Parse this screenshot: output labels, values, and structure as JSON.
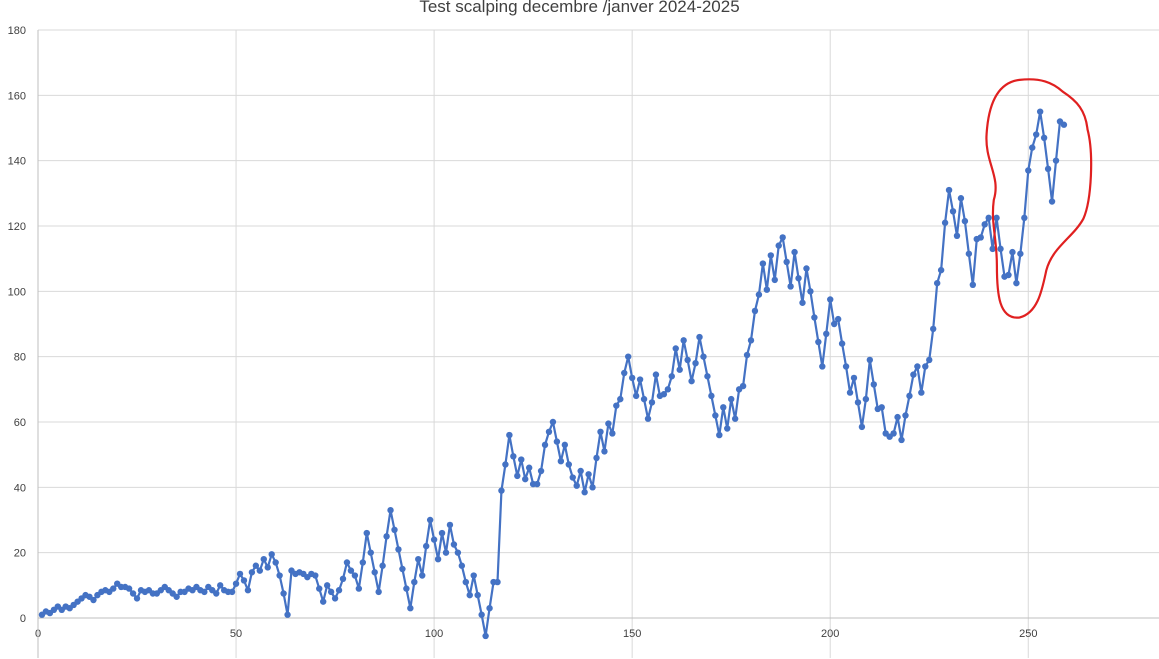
{
  "chart_data": {
    "type": "line",
    "title": "Test scalping decembre /janver 2024-2025",
    "xlabel": "",
    "ylabel": "",
    "xlim": [
      0,
      283
    ],
    "ylim": [
      0,
      180
    ],
    "xticks": [
      0,
      50,
      100,
      150,
      200,
      250
    ],
    "yticks": [
      0,
      20,
      40,
      60,
      80,
      100,
      120,
      140,
      160,
      180
    ],
    "grid": true,
    "legend": "none",
    "colors": {
      "series": "#4472C4",
      "annotation": "#E02020",
      "grid": "#D9D9D9"
    },
    "annotation": {
      "shape": "hand-drawn circle",
      "x_range": [
        240,
        266
      ],
      "y_range": [
        92,
        164
      ]
    },
    "series": [
      {
        "values": [
          1,
          2,
          1.5,
          2.5,
          3.5,
          2.5,
          3.5,
          3,
          4,
          5,
          6,
          7,
          6.5,
          5.5,
          7,
          8,
          8.5,
          8,
          9,
          10.5,
          9.5,
          9.5,
          9,
          7.5,
          6,
          8.5,
          8,
          8.5,
          7.5,
          7.5,
          8.5,
          9.5,
          8.5,
          7.5,
          6.5,
          8,
          8,
          9,
          8.5,
          9.5,
          8.5,
          8,
          9.5,
          8.5,
          7.5,
          10,
          8.5,
          8,
          8,
          10.5,
          13.5,
          11.5,
          8.5,
          14,
          16,
          14.5,
          18,
          15.5,
          19.5,
          17,
          13,
          7.5,
          1,
          14.5,
          13.5,
          14,
          13.5,
          12.5,
          13.5,
          13,
          9,
          5,
          10,
          8,
          6,
          8.5,
          12,
          17,
          14.5,
          13,
          9,
          17,
          26,
          20,
          14,
          8,
          16,
          25,
          33,
          27,
          21,
          15,
          9,
          3,
          11,
          18,
          13,
          22,
          30,
          24,
          18,
          26,
          20,
          28.5,
          22.5,
          20,
          16,
          11,
          7,
          13,
          7,
          1,
          -5.5,
          3,
          11,
          11,
          39,
          47,
          56,
          49.5,
          43.5,
          48.5,
          42.5,
          46,
          41,
          41,
          45,
          53,
          57,
          60,
          54,
          48,
          53,
          47,
          43,
          40.5,
          45,
          38.5,
          44,
          40,
          49,
          57,
          51,
          59.5,
          56.5,
          65,
          67,
          75,
          80,
          73.5,
          68,
          73,
          67,
          61,
          66,
          74.5,
          68,
          68.5,
          70,
          74,
          82.5,
          76,
          85,
          79,
          72.5,
          78,
          86,
          80,
          74,
          68,
          62,
          56,
          64.5,
          58,
          67,
          61,
          70,
          71,
          80.5,
          85,
          94,
          99,
          108.5,
          100.5,
          111,
          103.5,
          114,
          116.5,
          109,
          101.5,
          112,
          104,
          96.5,
          107,
          100,
          92,
          84.5,
          77,
          87,
          97.5,
          90,
          91.5,
          84,
          77,
          69,
          73.5,
          66,
          58.5,
          67,
          79,
          71.5,
          64,
          64.5,
          56.5,
          55.5,
          56.5,
          61.5,
          54.5,
          62,
          68,
          74.5,
          77,
          69,
          77,
          79,
          88.5,
          102.5,
          106.5,
          121,
          131,
          124.5,
          117,
          128.5,
          121.5,
          111.5,
          102,
          116,
          116.5,
          120.5,
          122.5,
          113,
          122.5,
          113,
          104.5,
          105,
          112,
          102.5,
          111.5,
          122.5,
          137,
          144,
          148,
          155,
          147,
          137.5,
          127.5,
          140,
          152,
          151
        ]
      }
    ]
  }
}
